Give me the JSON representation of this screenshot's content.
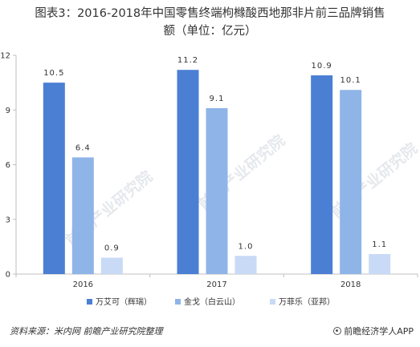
{
  "chart_data": {
    "type": "bar",
    "title": "图表3：2016-2018年中国零售终端枸橼酸西地那非片前三品牌销售额（单位：亿元）",
    "title_lines": [
      "图表3：2016-2018年中国零售终端枸橼酸西地那非片前三品牌销售",
      "额（单位：亿元）"
    ],
    "categories": [
      "2016",
      "2017",
      "2018"
    ],
    "series": [
      {
        "name": "万艾可（辉瑞）",
        "color": "#4a7fd4",
        "values": [
          10.5,
          11.2,
          10.9
        ],
        "labels": [
          "10.5",
          "11.2",
          "10.9"
        ]
      },
      {
        "name": "金戈（白云山）",
        "color": "#8fb4e8",
        "values": [
          6.4,
          9.1,
          10.1
        ],
        "labels": [
          "6.4",
          "9.1",
          "10.1"
        ]
      },
      {
        "name": "万菲乐（亚邦）",
        "color": "#c8daf5",
        "values": [
          0.9,
          1.0,
          1.1
        ],
        "labels": [
          "0.9",
          "1.0",
          "1.1"
        ]
      }
    ],
    "y_ticks": [
      "0",
      "3",
      "6",
      "9",
      "12"
    ],
    "ylim": [
      0,
      12
    ],
    "xlabel": "",
    "ylabel": "",
    "grid": false,
    "legend_position": "bottom"
  },
  "watermarks": [
    "前瞻产业研究院",
    "前瞻产业研究院",
    "前瞻产业研究院"
  ],
  "footer": {
    "source": "资料来源：米内网 前瞻产业研究院整理",
    "brand": "前瞻经济学人APP",
    "brand_icon": "qianzhan-logo-icon"
  }
}
